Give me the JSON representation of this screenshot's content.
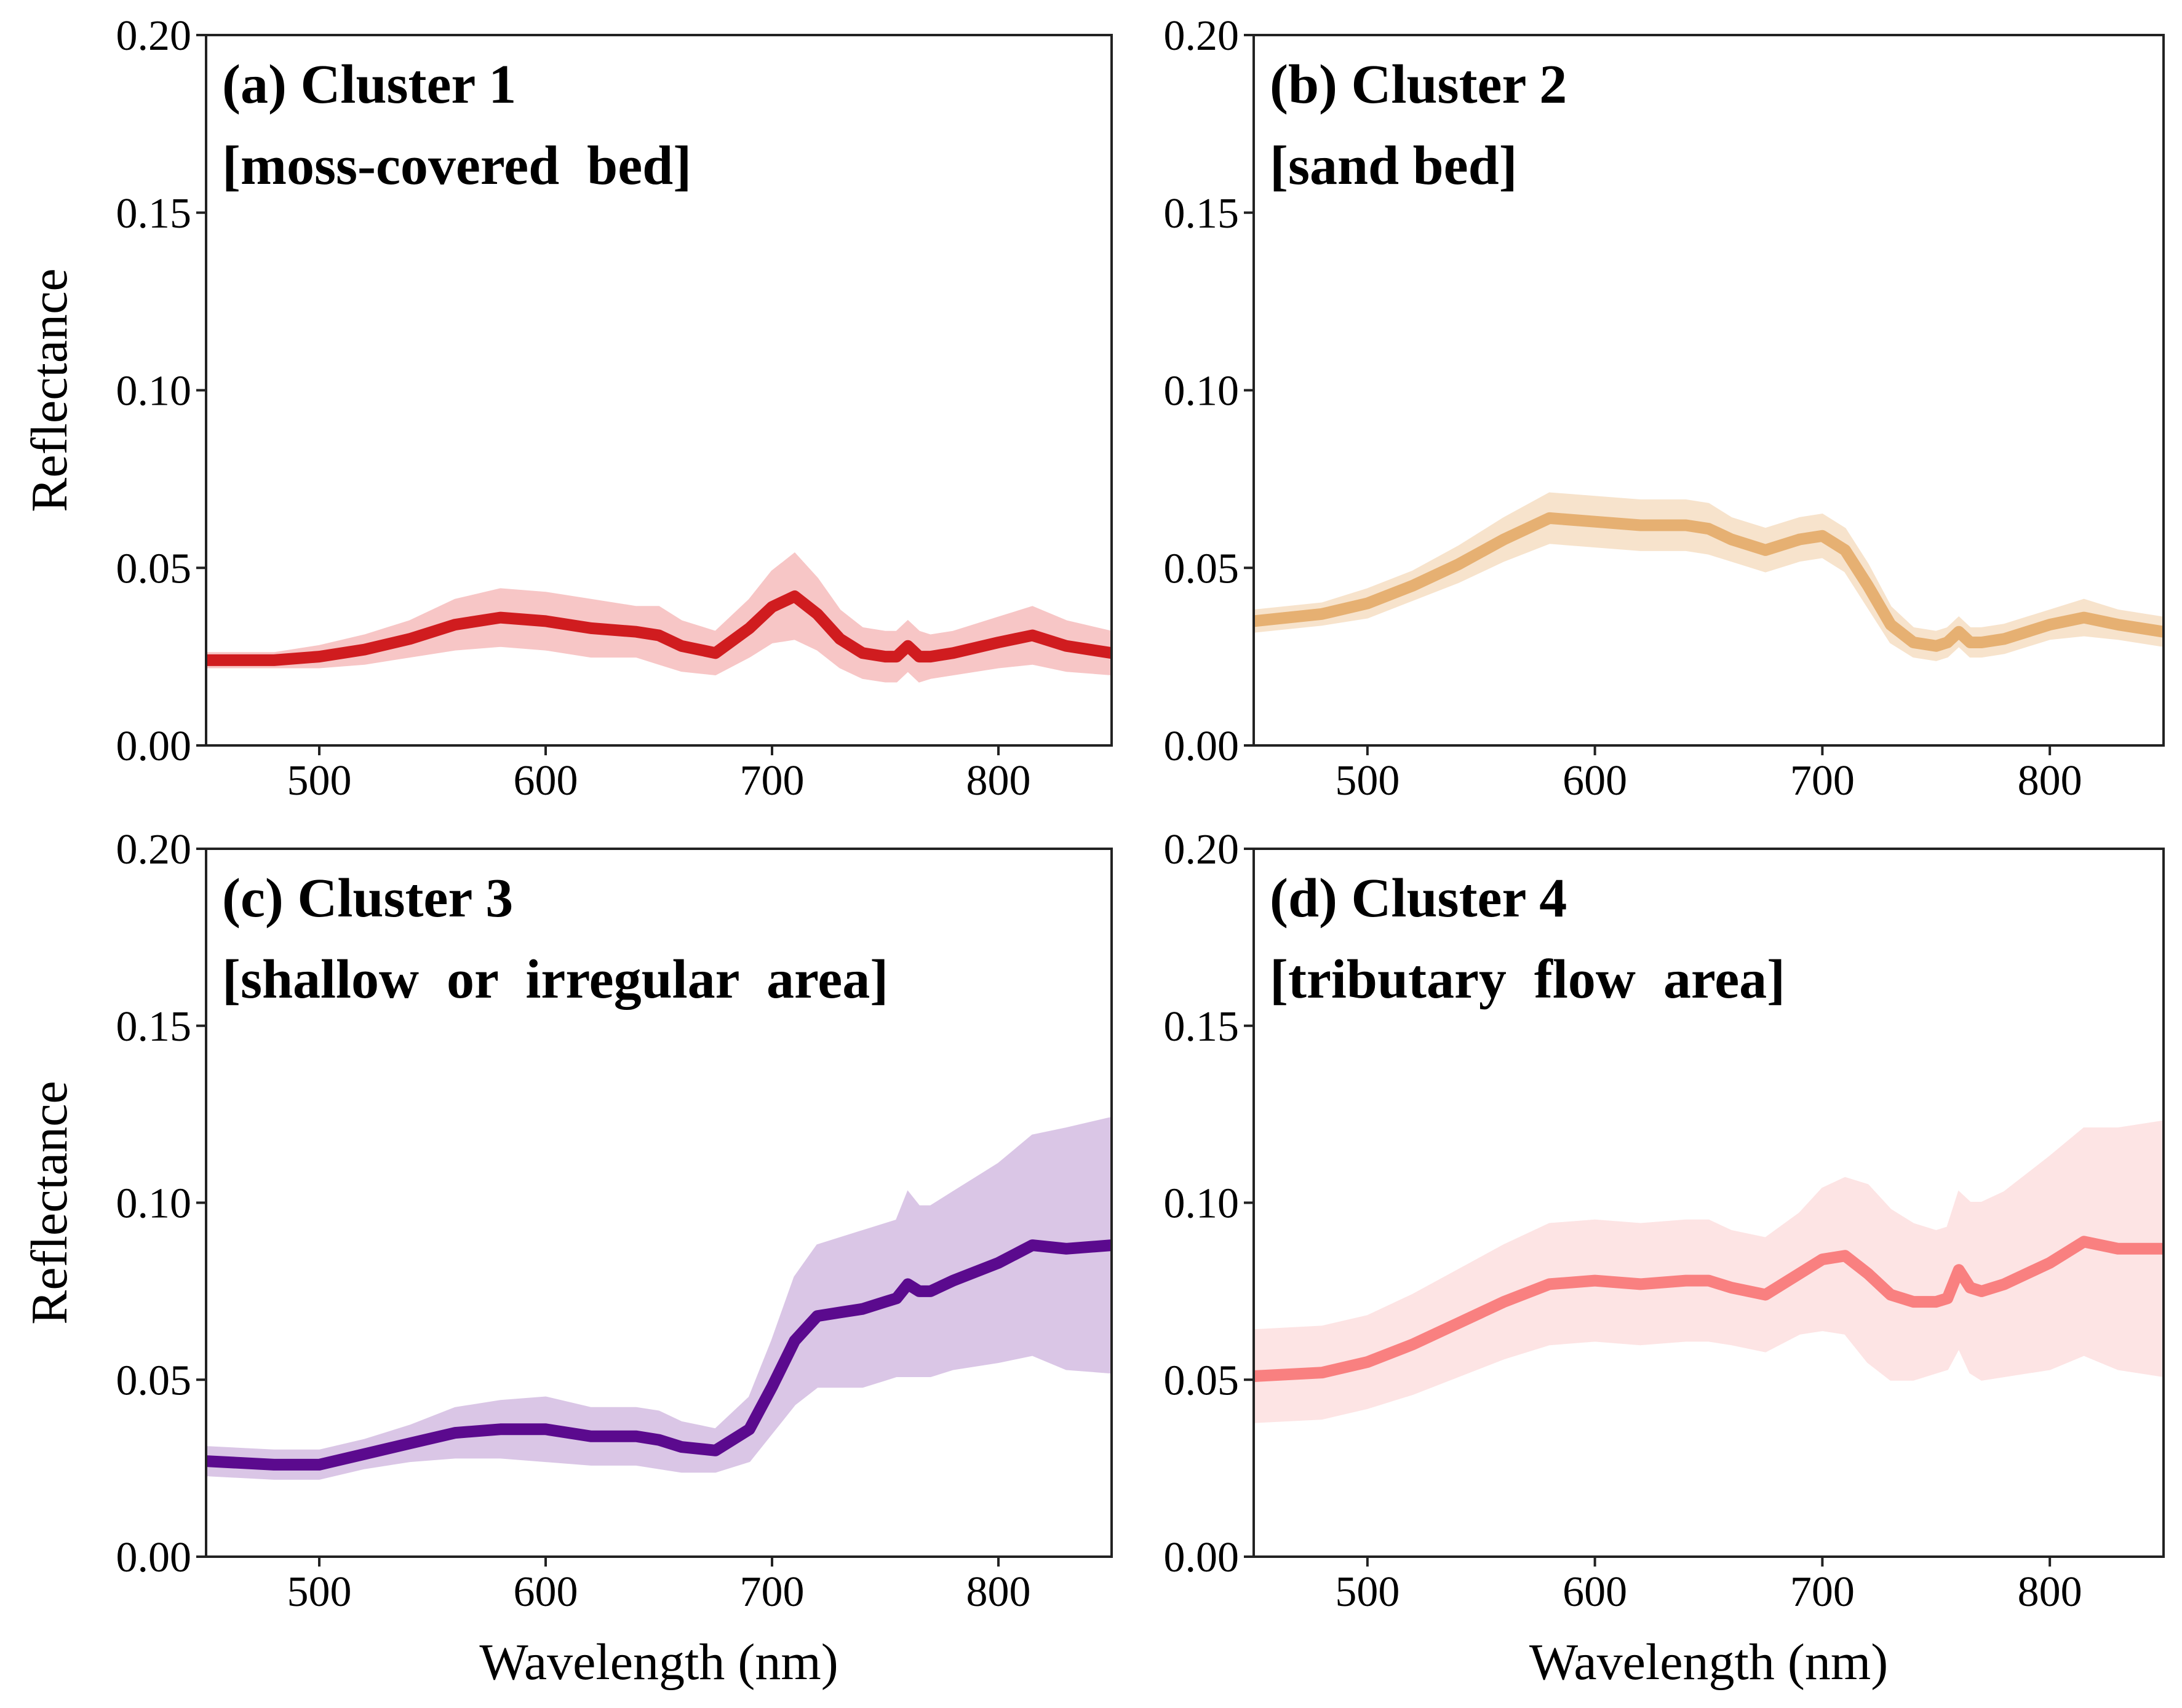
{
  "chart_data": [
    {
      "type": "line",
      "panel": "a",
      "title": "(a) Cluster 1",
      "subtitle": "[moss-covered  bed]",
      "xlabel": "",
      "ylabel": "Reflectance",
      "xlim": [
        450,
        850
      ],
      "ylim": [
        0,
        0.2
      ],
      "xticks": [
        "500",
        "600",
        "700",
        "800"
      ],
      "yticks": [
        "0.00",
        "0.05",
        "0.10",
        "0.15",
        "0.20"
      ],
      "line_color": "#d01c1f",
      "band_color": "#f7c6c6",
      "x": [
        450,
        480,
        500,
        520,
        540,
        560,
        580,
        600,
        620,
        640,
        650,
        660,
        675,
        690,
        700,
        710,
        720,
        730,
        740,
        750,
        755,
        760,
        765,
        770,
        780,
        800,
        815,
        830,
        850
      ],
      "mean": [
        0.024,
        0.024,
        0.025,
        0.027,
        0.03,
        0.034,
        0.036,
        0.035,
        0.033,
        0.032,
        0.031,
        0.028,
        0.026,
        0.033,
        0.039,
        0.042,
        0.037,
        0.03,
        0.026,
        0.025,
        0.025,
        0.028,
        0.025,
        0.025,
        0.026,
        0.029,
        0.031,
        0.028,
        0.026
      ],
      "std": [
        0.002,
        0.002,
        0.003,
        0.004,
        0.005,
        0.007,
        0.008,
        0.008,
        0.008,
        0.007,
        0.008,
        0.007,
        0.006,
        0.008,
        0.01,
        0.012,
        0.01,
        0.008,
        0.007,
        0.007,
        0.007,
        0.007,
        0.007,
        0.006,
        0.006,
        0.007,
        0.008,
        0.007,
        0.006
      ]
    },
    {
      "type": "line",
      "panel": "b",
      "title": "(b) Cluster 2",
      "subtitle": "[sand bed]",
      "xlabel": "",
      "ylabel": "",
      "xlim": [
        450,
        850
      ],
      "ylim": [
        0,
        0.2
      ],
      "xticks": [
        "500",
        "600",
        "700",
        "800"
      ],
      "yticks": [
        "0.00",
        "0.05",
        "0.10",
        "0.15",
        "0.20"
      ],
      "line_color": "#e6b072",
      "band_color": "#f7e3cc",
      "x": [
        450,
        480,
        500,
        520,
        540,
        560,
        580,
        600,
        620,
        640,
        650,
        660,
        675,
        690,
        700,
        710,
        720,
        730,
        740,
        750,
        755,
        760,
        765,
        770,
        780,
        800,
        815,
        830,
        850
      ],
      "mean": [
        0.035,
        0.037,
        0.04,
        0.045,
        0.051,
        0.058,
        0.064,
        0.063,
        0.062,
        0.062,
        0.061,
        0.058,
        0.055,
        0.058,
        0.059,
        0.055,
        0.045,
        0.034,
        0.029,
        0.028,
        0.029,
        0.032,
        0.029,
        0.029,
        0.03,
        0.034,
        0.036,
        0.034,
        0.032
      ],
      "std": [
        0.003,
        0.003,
        0.004,
        0.004,
        0.005,
        0.006,
        0.007,
        0.007,
        0.007,
        0.007,
        0.007,
        0.006,
        0.006,
        0.006,
        0.006,
        0.006,
        0.006,
        0.005,
        0.004,
        0.004,
        0.004,
        0.004,
        0.004,
        0.004,
        0.004,
        0.004,
        0.005,
        0.004,
        0.004
      ]
    },
    {
      "type": "line",
      "panel": "c",
      "title": "(c) Cluster 3",
      "subtitle": "[shallow  or  irregular  area]",
      "xlabel": "Wavelength (nm)",
      "ylabel": "Reflectance",
      "xlim": [
        450,
        850
      ],
      "ylim": [
        0,
        0.2
      ],
      "xticks": [
        "500",
        "600",
        "700",
        "800"
      ],
      "yticks": [
        "0.00",
        "0.05",
        "0.10",
        "0.15",
        "0.20"
      ],
      "line_color": "#5b0a8e",
      "band_color": "#dac6e6",
      "x": [
        450,
        480,
        500,
        520,
        540,
        560,
        580,
        600,
        620,
        640,
        650,
        660,
        675,
        690,
        700,
        710,
        720,
        730,
        740,
        750,
        755,
        760,
        765,
        770,
        780,
        800,
        815,
        830,
        850
      ],
      "mean": [
        0.027,
        0.026,
        0.026,
        0.029,
        0.032,
        0.035,
        0.036,
        0.036,
        0.034,
        0.034,
        0.033,
        0.031,
        0.03,
        0.036,
        0.048,
        0.061,
        0.068,
        0.069,
        0.07,
        0.072,
        0.073,
        0.077,
        0.075,
        0.075,
        0.078,
        0.083,
        0.088,
        0.087,
        0.088
      ],
      "std": [
        0.004,
        0.004,
        0.004,
        0.004,
        0.005,
        0.007,
        0.008,
        0.009,
        0.008,
        0.008,
        0.008,
        0.007,
        0.006,
        0.009,
        0.013,
        0.018,
        0.02,
        0.021,
        0.022,
        0.022,
        0.022,
        0.026,
        0.024,
        0.024,
        0.025,
        0.028,
        0.031,
        0.034,
        0.036
      ]
    },
    {
      "type": "line",
      "panel": "d",
      "title": "(d) Cluster 4",
      "subtitle": "[tributary  flow  area]",
      "xlabel": "Wavelength (nm)",
      "ylabel": "",
      "xlim": [
        450,
        850
      ],
      "ylim": [
        0,
        0.2
      ],
      "xticks": [
        "500",
        "600",
        "700",
        "800"
      ],
      "yticks": [
        "0.00",
        "0.05",
        "0.10",
        "0.15",
        "0.20"
      ],
      "line_color": "#f98080",
      "band_color": "#fde4e4",
      "x": [
        450,
        480,
        500,
        520,
        540,
        560,
        580,
        600,
        620,
        640,
        650,
        660,
        675,
        690,
        700,
        710,
        720,
        730,
        740,
        750,
        755,
        760,
        765,
        770,
        780,
        800,
        815,
        830,
        850
      ],
      "mean": [
        0.051,
        0.052,
        0.055,
        0.06,
        0.066,
        0.072,
        0.077,
        0.078,
        0.077,
        0.078,
        0.078,
        0.076,
        0.074,
        0.08,
        0.084,
        0.085,
        0.08,
        0.074,
        0.072,
        0.072,
        0.073,
        0.081,
        0.076,
        0.075,
        0.077,
        0.083,
        0.089,
        0.087,
        0.087
      ],
      "std": [
        0.013,
        0.013,
        0.013,
        0.014,
        0.015,
        0.016,
        0.017,
        0.017,
        0.017,
        0.017,
        0.017,
        0.016,
        0.016,
        0.017,
        0.02,
        0.022,
        0.025,
        0.024,
        0.022,
        0.02,
        0.02,
        0.022,
        0.024,
        0.025,
        0.026,
        0.03,
        0.032,
        0.034,
        0.036
      ]
    }
  ]
}
